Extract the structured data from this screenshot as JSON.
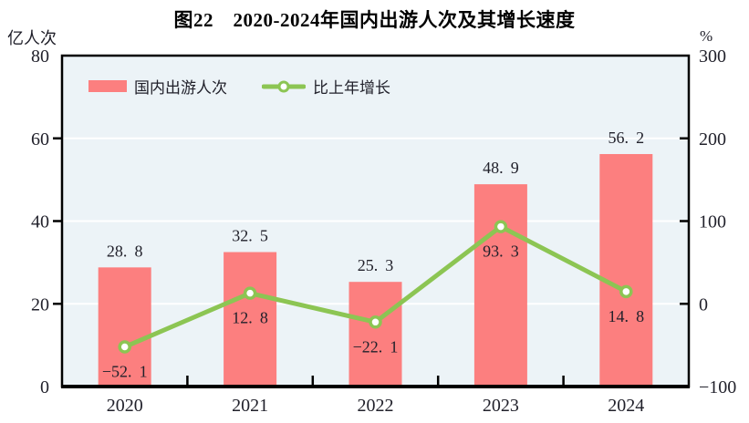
{
  "title": "图22　2020-2024年国内出游人次及其增长速度",
  "left_axis": {
    "unit": "亿人次"
  },
  "right_axis": {
    "unit": "%"
  },
  "legend": {
    "bar_label": "国内出游人次",
    "line_label": "比上年增长"
  },
  "colors": {
    "bar": "#fc7f7f",
    "line": "#8cc553",
    "plot_background": "#ecf3f7",
    "gridline": "#ffffff",
    "axis": "#000000",
    "text": "#21212b"
  },
  "chart_data": {
    "type": "combo",
    "title": "图22　2020-2024年国内出游人次及其增长速度",
    "categories": [
      "2020",
      "2021",
      "2022",
      "2023",
      "2024"
    ],
    "series": [
      {
        "name": "国内出游人次",
        "type": "bar",
        "axis": "left",
        "unit": "亿人次",
        "values": [
          28.8,
          32.5,
          25.3,
          48.9,
          56.2
        ]
      },
      {
        "name": "比上年增长",
        "type": "line",
        "axis": "right",
        "unit": "%",
        "values": [
          -52.1,
          12.8,
          -22.1,
          93.3,
          14.8
        ]
      }
    ],
    "left_ylabel": "亿人次",
    "right_ylabel": "%",
    "left_ylim": [
      0,
      80
    ],
    "left_ticks": [
      0,
      20,
      40,
      60,
      80
    ],
    "right_ylim": [
      -100,
      300
    ],
    "right_ticks": [
      -100,
      0,
      100,
      200,
      300
    ],
    "grid": true,
    "gridline_ticks_left": [
      20,
      40,
      60
    ],
    "legend_position": "top-left-inside"
  }
}
